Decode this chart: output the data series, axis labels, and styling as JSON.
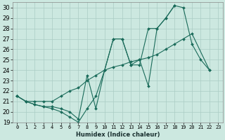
{
  "xlabel": "Humidex (Indice chaleur)",
  "bg_color": "#cce8e0",
  "grid_color": "#aaccC4",
  "line_color": "#1a6b5a",
  "xlim": [
    -0.5,
    23.5
  ],
  "ylim": [
    19,
    30.5
  ],
  "xticks": [
    0,
    1,
    2,
    3,
    4,
    5,
    6,
    7,
    8,
    9,
    10,
    11,
    12,
    13,
    14,
    15,
    16,
    17,
    18,
    19,
    20,
    21,
    22,
    23
  ],
  "yticks": [
    19,
    20,
    21,
    22,
    23,
    24,
    25,
    26,
    27,
    28,
    29,
    30
  ],
  "l1x": [
    0,
    1,
    2,
    3,
    4,
    5,
    6,
    7,
    8,
    9,
    10,
    11,
    12,
    13,
    14,
    15,
    16,
    17,
    18,
    19,
    20,
    21,
    22
  ],
  "l1y": [
    21.5,
    21.0,
    20.7,
    20.5,
    20.3,
    20.0,
    19.5,
    19.0,
    20.3,
    21.5,
    24.0,
    27.0,
    27.0,
    24.5,
    24.5,
    28.0,
    28.0,
    29.0,
    30.2,
    30.0,
    26.5,
    25.0,
    24.0
  ],
  "l2x": [
    0,
    1,
    2,
    3,
    4,
    5,
    6,
    7,
    8,
    9,
    10,
    11,
    12,
    13,
    14,
    15,
    16,
    17,
    18
  ],
  "l2y": [
    21.5,
    21.0,
    20.7,
    20.5,
    20.5,
    20.3,
    20.0,
    19.3,
    23.5,
    20.3,
    24.0,
    27.0,
    27.0,
    24.5,
    25.0,
    22.5,
    28.0,
    29.0,
    30.2
  ],
  "l3x": [
    0,
    1,
    2,
    3,
    4,
    5,
    6,
    7,
    8,
    9,
    10,
    11,
    12,
    13,
    14,
    15,
    16,
    17,
    18,
    19,
    20,
    22
  ],
  "l3y": [
    21.5,
    21.0,
    21.0,
    21.0,
    21.0,
    21.5,
    22.0,
    22.3,
    23.0,
    23.5,
    24.0,
    24.3,
    24.5,
    24.8,
    25.0,
    25.2,
    25.5,
    26.0,
    26.5,
    27.0,
    27.5,
    24.0
  ],
  "xlabel_fontsize": 6.0,
  "tick_fontsize": 5.0,
  "ytick_fontsize": 6.0
}
